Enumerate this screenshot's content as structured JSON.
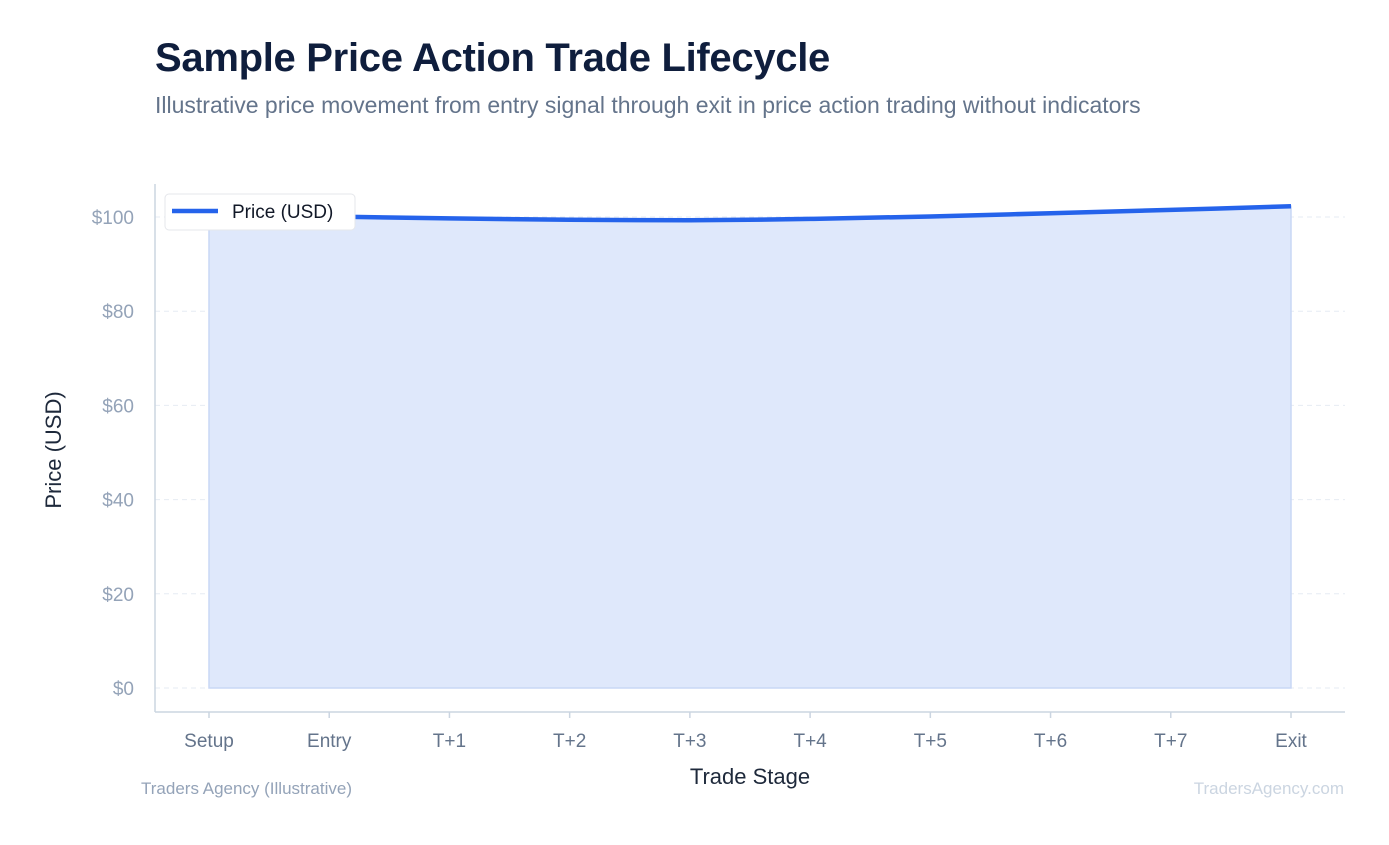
{
  "header": {
    "title": "Sample Price Action Trade Lifecycle",
    "subtitle": "Illustrative price movement from entry signal through exit in price action trading without indicators"
  },
  "footer": {
    "source": "Traders Agency (Illustrative)",
    "watermark": "TradersAgency.com"
  },
  "colors": {
    "line": "#2563eb",
    "fill": "#dfe8fb",
    "grid": "#e6ebf3",
    "axis": "#cbd5e1",
    "tick_text": "#94a3b8",
    "category_text": "#64748b",
    "axis_label": "#1e293b"
  },
  "chart_data": {
    "type": "area",
    "title": "Sample Price Action Trade Lifecycle",
    "subtitle": "Illustrative price movement from entry signal through exit in price action trading without indicators",
    "xlabel": "Trade Stage",
    "ylabel": "Price (USD)",
    "categories": [
      "Setup",
      "Entry",
      "T+1",
      "T+2",
      "T+3",
      "T+4",
      "T+5",
      "T+6",
      "T+7",
      "Exit"
    ],
    "series": [
      {
        "name": "Price (USD)",
        "values": [
          100.5,
          100.1,
          99.7,
          99.4,
          99.3,
          99.6,
          100.1,
          100.8,
          101.5,
          102.3
        ]
      }
    ],
    "ylim": [
      0,
      107
    ],
    "yticks": [
      0,
      20,
      40,
      60,
      80,
      100
    ],
    "ytick_labels": [
      "$0",
      "$20",
      "$40",
      "$60",
      "$80",
      "$100"
    ],
    "grid": true,
    "legend": "top-left"
  }
}
